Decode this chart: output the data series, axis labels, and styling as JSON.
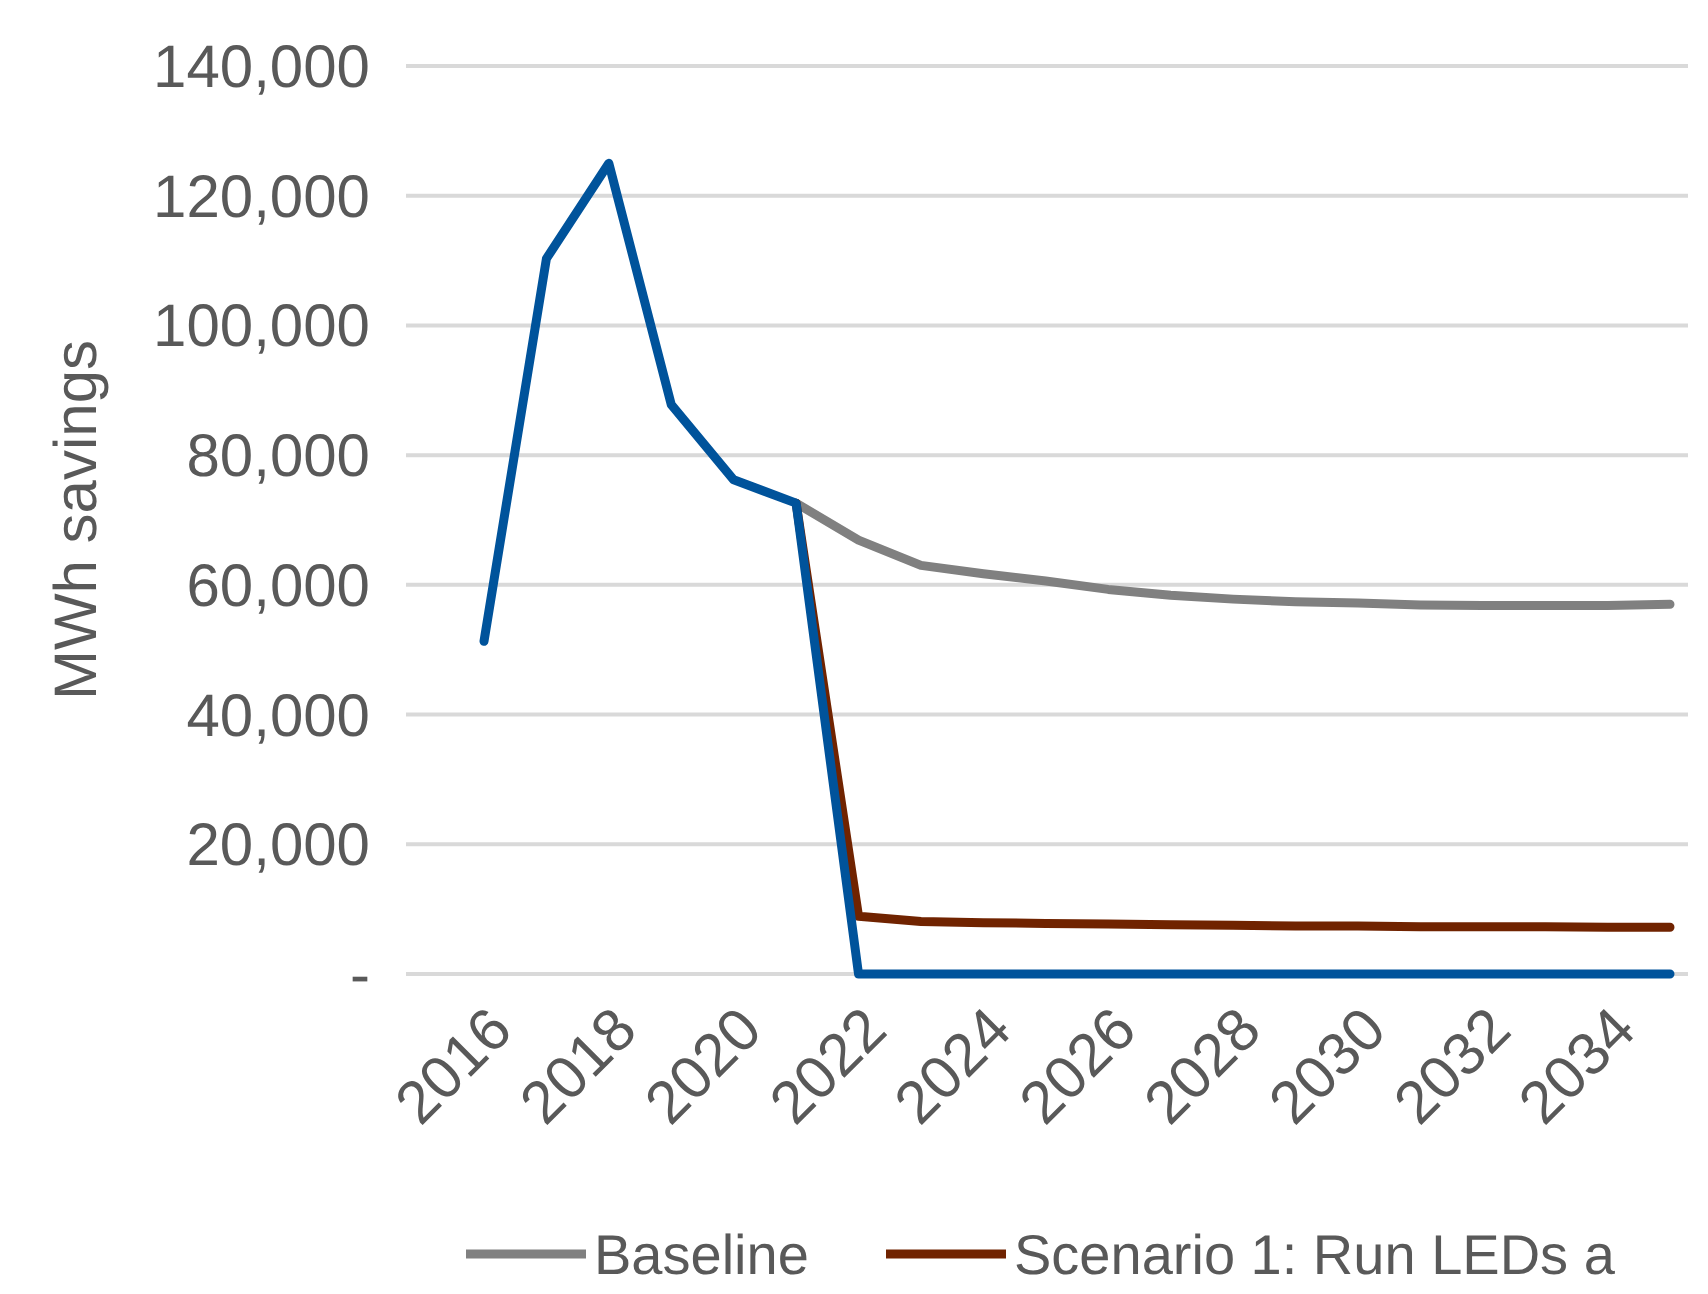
{
  "chart_data": {
    "type": "line",
    "ylabel": "MWh savings",
    "categories": [
      "2016",
      null,
      "2018",
      null,
      "2020",
      null,
      "2022",
      null,
      "2024",
      null,
      "2026",
      null,
      "2028",
      null,
      "2030",
      null,
      "2032",
      null,
      "2034",
      null
    ],
    "series": [
      {
        "name": "Baseline",
        "color": "#808080",
        "values": [
          null,
          null,
          null,
          null,
          null,
          72600,
          66900,
          63000,
          61700,
          60600,
          59300,
          58400,
          57800,
          57400,
          57200,
          56900,
          56800,
          56800,
          56800,
          57000
        ]
      },
      {
        "name": "Scenario 1: Run LEDs a",
        "color": "#702300",
        "values": [
          null,
          null,
          null,
          null,
          null,
          72600,
          8900,
          8100,
          7900,
          7800,
          7700,
          7600,
          7500,
          7400,
          7400,
          7300,
          7300,
          7300,
          7200,
          7200
        ]
      },
      {
        "color": "#00539b",
        "values": [
          51300,
          110300,
          125000,
          87800,
          76200,
          72600,
          0,
          0,
          0,
          0,
          0,
          0,
          0,
          0,
          0,
          0,
          0,
          0,
          0,
          0
        ]
      }
    ],
    "ylim": [
      0,
      140000
    ],
    "yticks": [
      {
        "value": 0,
        "label": "-"
      },
      {
        "value": 20000,
        "label": "20,000"
      },
      {
        "value": 40000,
        "label": "40,000"
      },
      {
        "value": 60000,
        "label": "60,000"
      },
      {
        "value": 80000,
        "label": "80,000"
      },
      {
        "value": 100000,
        "label": "100,000"
      },
      {
        "value": 120000,
        "label": "120,000"
      },
      {
        "value": 140000,
        "label": "140,000"
      }
    ],
    "grid": "y",
    "legend": "bottom",
    "marker": "none",
    "line_style": "solid"
  }
}
